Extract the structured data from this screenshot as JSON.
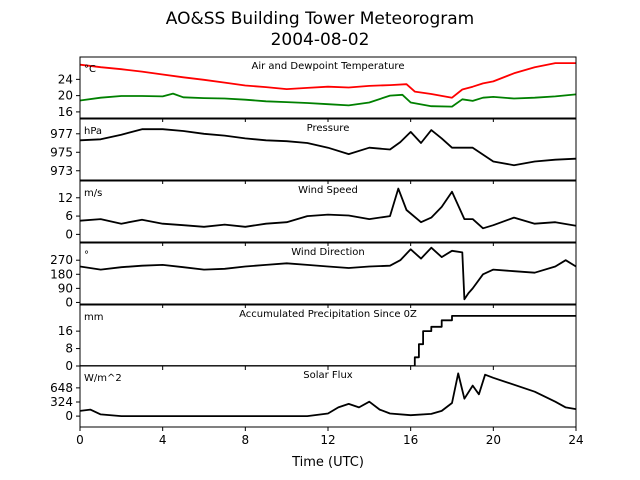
{
  "title_line1": "AO&SS Building Tower Meteorogram",
  "title_line2": "2004-08-02",
  "chart_data": {
    "type": "line",
    "x_label": "Time (UTC)",
    "x_range": [
      0,
      24
    ],
    "x_ticks": [
      0,
      4,
      8,
      12,
      16,
      20,
      24
    ],
    "panels": [
      {
        "name": "temperature",
        "title": "Air and Dewpoint Temperature",
        "unit": "°C",
        "y_range": [
          14.5,
          29.5
        ],
        "y_ticks": [
          16,
          20,
          24
        ],
        "series": [
          {
            "color": "#ff0000",
            "step": false,
            "points": [
              [
                0,
                27.6
              ],
              [
                1,
                27.0
              ],
              [
                2,
                26.5
              ],
              [
                3,
                25.9
              ],
              [
                4,
                25.2
              ],
              [
                5,
                24.5
              ],
              [
                6,
                23.9
              ],
              [
                7,
                23.2
              ],
              [
                8,
                22.5
              ],
              [
                9,
                22.1
              ],
              [
                10,
                21.6
              ],
              [
                11,
                21.9
              ],
              [
                12,
                22.2
              ],
              [
                13,
                22.0
              ],
              [
                14,
                22.4
              ],
              [
                15,
                22.6
              ],
              [
                15.8,
                22.8
              ],
              [
                16.2,
                21.0
              ],
              [
                17,
                20.4
              ],
              [
                18,
                19.5
              ],
              [
                18.5,
                21.5
              ],
              [
                19,
                22.2
              ],
              [
                19.5,
                23.0
              ],
              [
                20,
                23.5
              ],
              [
                21,
                25.5
              ],
              [
                22,
                27.0
              ],
              [
                23,
                28.0
              ],
              [
                24,
                28.0
              ]
            ]
          },
          {
            "color": "#008000",
            "step": false,
            "points": [
              [
                0,
                18.8
              ],
              [
                1,
                19.5
              ],
              [
                2,
                19.9
              ],
              [
                3,
                19.9
              ],
              [
                4,
                19.8
              ],
              [
                4.5,
                20.5
              ],
              [
                5,
                19.6
              ],
              [
                6,
                19.4
              ],
              [
                7,
                19.3
              ],
              [
                8,
                19.0
              ],
              [
                9,
                18.6
              ],
              [
                10,
                18.4
              ],
              [
                11,
                18.2
              ],
              [
                12,
                17.9
              ],
              [
                13,
                17.6
              ],
              [
                14,
                18.3
              ],
              [
                15,
                20.0
              ],
              [
                15.6,
                20.2
              ],
              [
                16,
                18.3
              ],
              [
                17,
                17.4
              ],
              [
                18,
                17.3
              ],
              [
                18.5,
                19.1
              ],
              [
                19,
                18.7
              ],
              [
                19.5,
                19.5
              ],
              [
                20,
                19.7
              ],
              [
                21,
                19.3
              ],
              [
                22,
                19.5
              ],
              [
                23,
                19.8
              ],
              [
                24,
                20.3
              ]
            ]
          }
        ]
      },
      {
        "name": "pressure",
        "title": "Pressure",
        "unit": "hPa",
        "y_range": [
          972.0,
          978.6
        ],
        "y_ticks": [
          973,
          975,
          977
        ],
        "series": [
          {
            "color": "#000000",
            "step": false,
            "points": [
              [
                0,
                976.3
              ],
              [
                1,
                976.4
              ],
              [
                2,
                976.9
              ],
              [
                3,
                977.5
              ],
              [
                4,
                977.5
              ],
              [
                5,
                977.3
              ],
              [
                6,
                977.0
              ],
              [
                7,
                976.8
              ],
              [
                8,
                976.5
              ],
              [
                9,
                976.3
              ],
              [
                10,
                976.2
              ],
              [
                11,
                976.0
              ],
              [
                12,
                975.5
              ],
              [
                13,
                974.8
              ],
              [
                14,
                975.5
              ],
              [
                15,
                975.3
              ],
              [
                15.5,
                976.1
              ],
              [
                16,
                977.2
              ],
              [
                16.5,
                976.0
              ],
              [
                17,
                977.4
              ],
              [
                17.5,
                976.5
              ],
              [
                18,
                975.5
              ],
              [
                19,
                975.5
              ],
              [
                20,
                974.0
              ],
              [
                21,
                973.6
              ],
              [
                22,
                974.0
              ],
              [
                23,
                974.2
              ],
              [
                24,
                974.3
              ]
            ]
          }
        ]
      },
      {
        "name": "wind_speed",
        "title": "Wind Speed",
        "unit": "m/s",
        "y_range": [
          -2.5,
          17.5
        ],
        "y_ticks": [
          0,
          6,
          12
        ],
        "series": [
          {
            "color": "#000000",
            "step": false,
            "points": [
              [
                0,
                4.5
              ],
              [
                1,
                5.0
              ],
              [
                2,
                3.5
              ],
              [
                3,
                4.8
              ],
              [
                4,
                3.5
              ],
              [
                5,
                3.0
              ],
              [
                6,
                2.5
              ],
              [
                7,
                3.2
              ],
              [
                8,
                2.5
              ],
              [
                9,
                3.5
              ],
              [
                10,
                4.0
              ],
              [
                11,
                6.0
              ],
              [
                12,
                6.5
              ],
              [
                13,
                6.2
              ],
              [
                14,
                5.0
              ],
              [
                15,
                6.0
              ],
              [
                15.4,
                15.0
              ],
              [
                15.8,
                8.0
              ],
              [
                16.5,
                4.0
              ],
              [
                17,
                5.5
              ],
              [
                17.5,
                9.0
              ],
              [
                18,
                14.0
              ],
              [
                18.6,
                5.0
              ],
              [
                19,
                5.0
              ],
              [
                19.5,
                2.0
              ],
              [
                20,
                3.0
              ],
              [
                21,
                5.5
              ],
              [
                22,
                3.5
              ],
              [
                23,
                4.0
              ],
              [
                24,
                2.8
              ]
            ]
          }
        ]
      },
      {
        "name": "wind_direction",
        "title": "Wind Direction",
        "unit": "°",
        "y_range": [
          -10,
          380
        ],
        "y_ticks": [
          0,
          90,
          180,
          270
        ],
        "series": [
          {
            "color": "#000000",
            "step": false,
            "points": [
              [
                0,
                230
              ],
              [
                1,
                210
              ],
              [
                2,
                225
              ],
              [
                3,
                235
              ],
              [
                4,
                240
              ],
              [
                5,
                225
              ],
              [
                6,
                210
              ],
              [
                7,
                215
              ],
              [
                8,
                230
              ],
              [
                9,
                240
              ],
              [
                10,
                250
              ],
              [
                11,
                240
              ],
              [
                12,
                230
              ],
              [
                13,
                220
              ],
              [
                14,
                230
              ],
              [
                15,
                235
              ],
              [
                15.5,
                270
              ],
              [
                16,
                340
              ],
              [
                16.5,
                280
              ],
              [
                17,
                350
              ],
              [
                17.5,
                290
              ],
              [
                18,
                330
              ],
              [
                18.5,
                320
              ],
              [
                18.6,
                20
              ],
              [
                18.8,
                60
              ],
              [
                19,
                90
              ],
              [
                19.5,
                180
              ],
              [
                20,
                210
              ],
              [
                21,
                200
              ],
              [
                22,
                190
              ],
              [
                23,
                230
              ],
              [
                23.5,
                270
              ],
              [
                24,
                230
              ]
            ]
          }
        ]
      },
      {
        "name": "precipitation",
        "title": "Accumulated Precipitation Since 0Z",
        "unit": "mm",
        "y_range": [
          0,
          28
        ],
        "y_ticks": [
          0,
          8,
          16
        ],
        "series": [
          {
            "color": "#000000",
            "step": true,
            "points": [
              [
                0,
                0
              ],
              [
                16,
                0
              ],
              [
                16.2,
                4
              ],
              [
                16.4,
                10
              ],
              [
                16.6,
                16
              ],
              [
                17,
                18
              ],
              [
                17.5,
                21
              ],
              [
                18,
                23
              ],
              [
                20,
                23
              ],
              [
                24,
                23
              ]
            ]
          }
        ]
      },
      {
        "name": "solar_flux",
        "title": "Solar Flux",
        "unit": "W/m^2",
        "y_range": [
          -250,
          1150
        ],
        "y_ticks": [
          0,
          324,
          648
        ],
        "series": [
          {
            "color": "#000000",
            "step": false,
            "points": [
              [
                0,
                120
              ],
              [
                0.5,
                150
              ],
              [
                1,
                40
              ],
              [
                2,
                0
              ],
              [
                4,
                0
              ],
              [
                8,
                0
              ],
              [
                11,
                0
              ],
              [
                12,
                60
              ],
              [
                12.5,
                200
              ],
              [
                13,
                280
              ],
              [
                13.5,
                200
              ],
              [
                14,
                330
              ],
              [
                14.5,
                150
              ],
              [
                15,
                60
              ],
              [
                16,
                20
              ],
              [
                17,
                50
              ],
              [
                17.5,
                120
              ],
              [
                18,
                300
              ],
              [
                18.3,
                980
              ],
              [
                18.6,
                400
              ],
              [
                19,
                700
              ],
              [
                19.3,
                500
              ],
              [
                19.6,
                950
              ],
              [
                20,
                880
              ],
              [
                22,
                560
              ],
              [
                23,
                330
              ],
              [
                23.5,
                200
              ],
              [
                24,
                160
              ]
            ]
          }
        ]
      }
    ]
  }
}
